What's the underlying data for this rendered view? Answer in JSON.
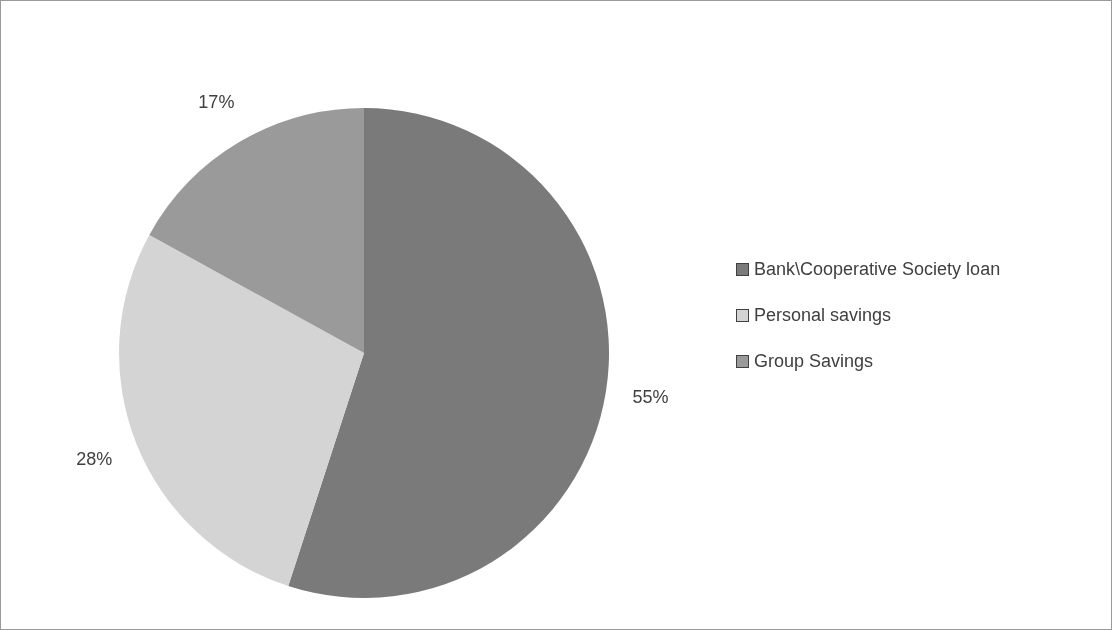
{
  "chart_data": {
    "type": "pie",
    "categories": [
      "Bank\\Cooperative Society loan",
      "Personal savings",
      "Group Savings"
    ],
    "values": [
      55,
      28,
      17
    ],
    "colors": [
      "#7a7a7a",
      "#d4d4d4",
      "#9a9a9a"
    ],
    "value_labels": [
      "55%",
      "28%",
      "17%"
    ],
    "legend": "right"
  }
}
